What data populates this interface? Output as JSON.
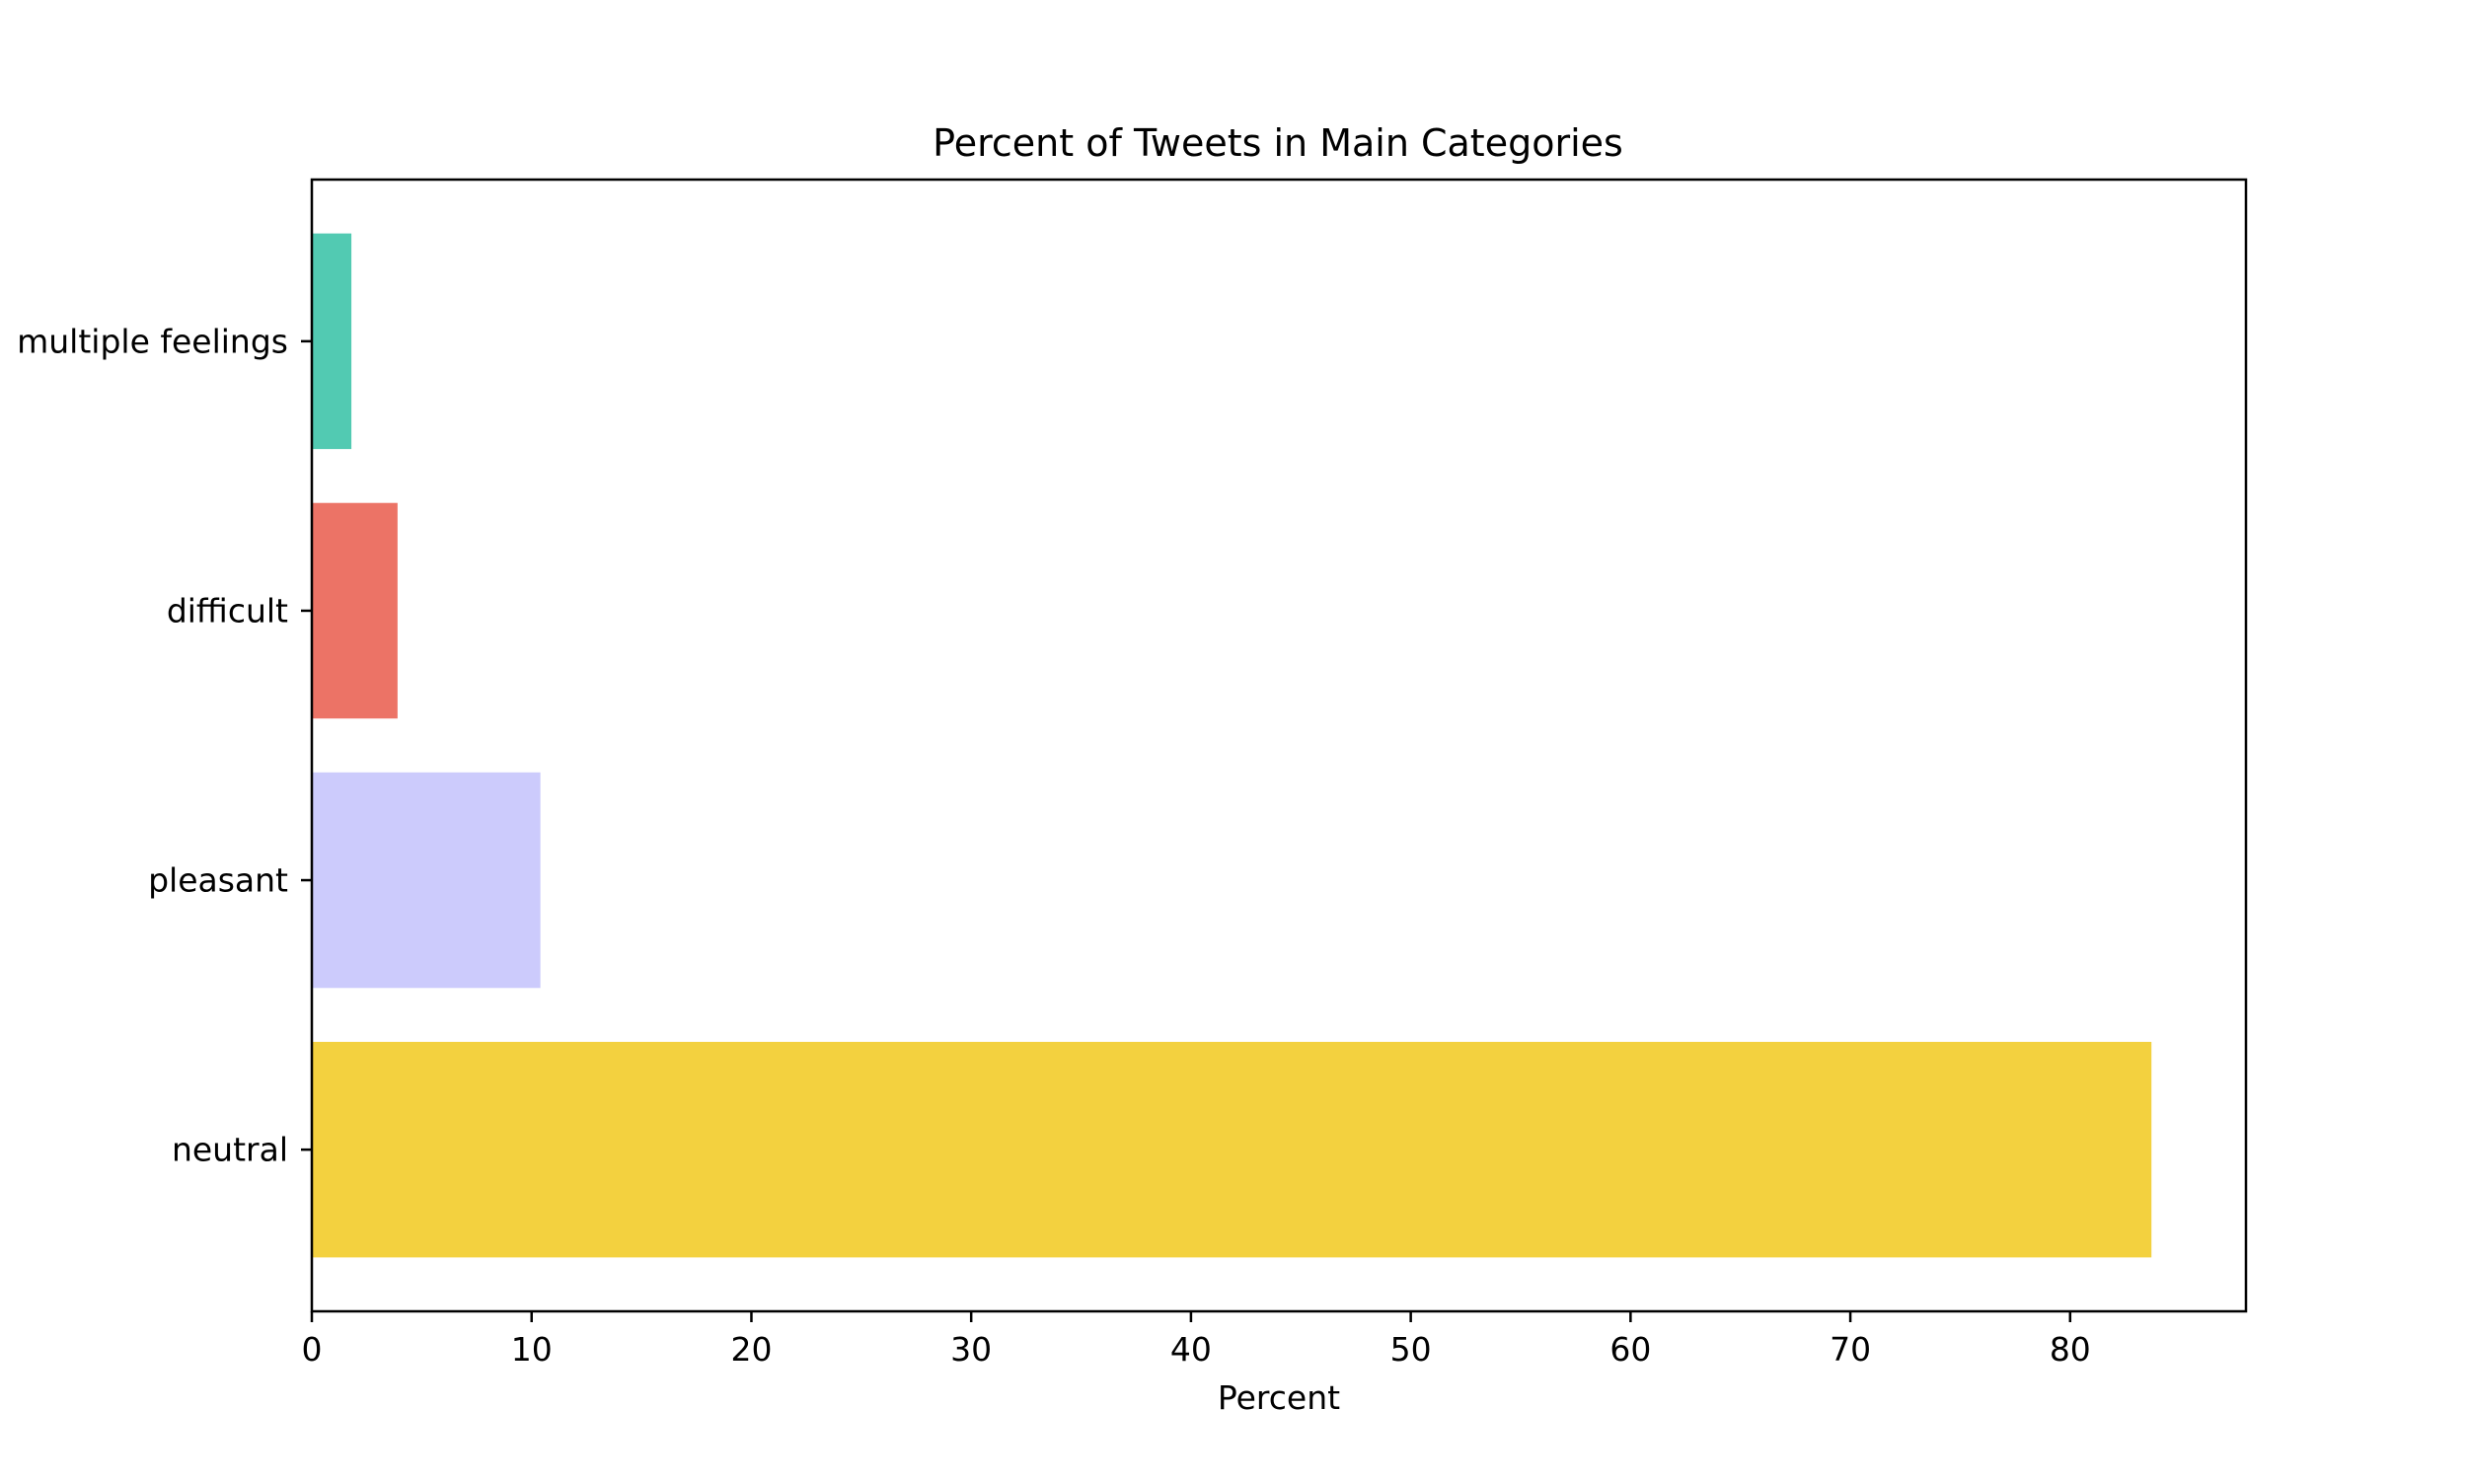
{
  "chart_data": {
    "type": "bar",
    "orientation": "horizontal",
    "title": "Percent of Tweets in Main Categories",
    "xlabel": "Percent",
    "ylabel": "",
    "categories": [
      "neutral",
      "pleasant",
      "difficult",
      "multiple feelings"
    ],
    "values": [
      83.7,
      10.4,
      3.9,
      1.8
    ],
    "colors": [
      "#f3d13f",
      "#cccbfc",
      "#ec7366",
      "#52cab2"
    ],
    "xlim": [
      0,
      88
    ],
    "xticks": [
      0,
      10,
      20,
      30,
      40,
      50,
      60,
      70,
      80
    ],
    "grid": false,
    "legend": "none"
  }
}
